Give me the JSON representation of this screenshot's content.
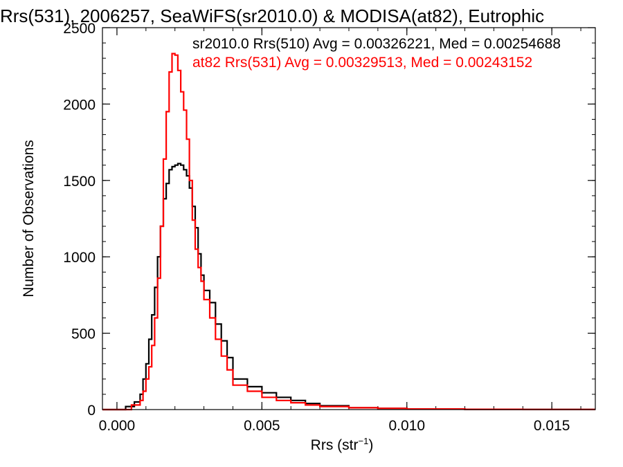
{
  "chart_data": {
    "type": "line",
    "title": "Rrs(531), 2006257, SeaWiFS(sr2010.0) & MODISA(at82), Eutrophic",
    "xlabel": "Rrs (str",
    "xlabel_sup": "−1",
    "xlabel_end": ")",
    "ylabel": "Number of Observations",
    "xlim": [
      -0.0005,
      0.0165
    ],
    "ylim": [
      0,
      2500
    ],
    "xticks": [
      0.0,
      0.005,
      0.01,
      0.015
    ],
    "xtick_labels": [
      "0.000",
      "0.005",
      "0.010",
      "0.015"
    ],
    "yticks": [
      0,
      500,
      1000,
      1500,
      2000,
      2500
    ],
    "ytick_labels": [
      "0",
      "500",
      "1000",
      "1500",
      "2000",
      "2500"
    ],
    "x_minor_step": 0.001,
    "y_minor_step": 100,
    "grid": false,
    "legend_placement": "top-right",
    "series": [
      {
        "name": "sr2010.0 Rrs(510) Avg = 0.00326221, Med = 0.00254688",
        "color": "#000000",
        "x": [
          0.0003,
          0.0006,
          0.0008,
          0.0009,
          0.001,
          0.0011,
          0.0012,
          0.0013,
          0.0014,
          0.0015,
          0.0016,
          0.0017,
          0.0018,
          0.0019,
          0.002,
          0.0021,
          0.0022,
          0.0023,
          0.0024,
          0.0025,
          0.0026,
          0.0027,
          0.0028,
          0.0029,
          0.003,
          0.0032,
          0.0034,
          0.0036,
          0.0038,
          0.004,
          0.0045,
          0.005,
          0.0055,
          0.006,
          0.0065,
          0.007,
          0.008,
          0.009,
          0.01,
          0.012,
          0.014,
          0.0165
        ],
        "y": [
          0,
          20,
          50,
          100,
          200,
          300,
          460,
          620,
          800,
          1000,
          1200,
          1380,
          1480,
          1570,
          1590,
          1600,
          1610,
          1600,
          1570,
          1530,
          1450,
          1330,
          1190,
          1020,
          880,
          780,
          700,
          560,
          450,
          340,
          200,
          150,
          110,
          80,
          60,
          40,
          25,
          12,
          8,
          4,
          2,
          1
        ]
      },
      {
        "name": "at82 Rrs(531) Avg = 0.00329513, Med = 0.00243152",
        "color": "#ff0000",
        "x": [
          0.0005,
          0.0008,
          0.0009,
          0.001,
          0.0011,
          0.0012,
          0.0013,
          0.0014,
          0.0015,
          0.0016,
          0.0017,
          0.0018,
          0.0019,
          0.002,
          0.0021,
          0.0022,
          0.0023,
          0.0024,
          0.0025,
          0.0026,
          0.0027,
          0.0028,
          0.0029,
          0.003,
          0.0032,
          0.0034,
          0.0036,
          0.0038,
          0.004,
          0.0045,
          0.005,
          0.0055,
          0.006,
          0.0065,
          0.007,
          0.008,
          0.009,
          0.01,
          0.012,
          0.014,
          0.0165
        ],
        "y": [
          0,
          30,
          60,
          120,
          200,
          280,
          420,
          600,
          860,
          1200,
          1640,
          1950,
          2210,
          2330,
          2320,
          2220,
          2080,
          1960,
          1770,
          1500,
          1240,
          1050,
          930,
          840,
          720,
          600,
          460,
          350,
          260,
          160,
          120,
          80,
          60,
          45,
          30,
          20,
          12,
          8,
          4,
          2,
          1
        ]
      }
    ]
  }
}
